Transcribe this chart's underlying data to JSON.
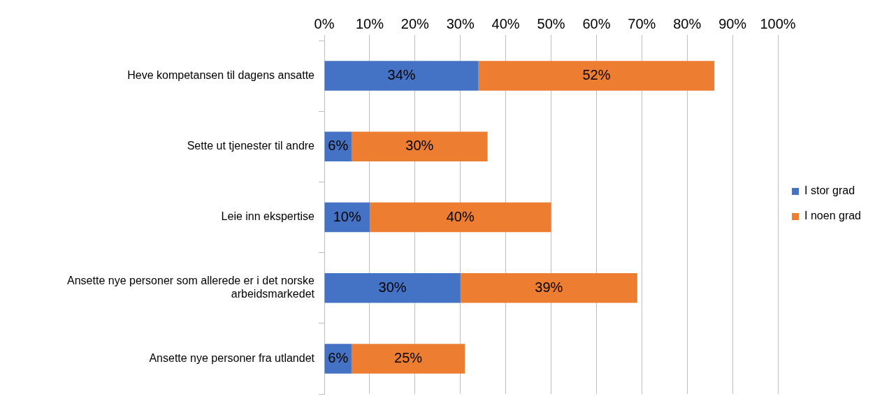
{
  "chart_data": {
    "type": "bar",
    "orientation": "horizontal",
    "stacked": true,
    "categories": [
      "Heve kompetansen til dagens ansatte",
      "Sette ut tjenester til andre",
      "Leie inn ekspertise",
      "Ansette nye personer som allerede er i det norske arbeidsmarkedet",
      "Ansette nye personer fra utlandet"
    ],
    "series": [
      {
        "name": "I stor grad",
        "color": "#4472c4",
        "values": [
          34,
          6,
          10,
          30,
          6
        ],
        "value_labels": [
          "34%",
          "6%",
          "10%",
          "30%",
          "6%"
        ]
      },
      {
        "name": "I noen grad",
        "color": "#ed7d31",
        "values": [
          52,
          30,
          40,
          39,
          25
        ],
        "value_labels": [
          "52%",
          "30%",
          "40%",
          "39%",
          "25%"
        ]
      }
    ],
    "xlim": [
      0,
      100
    ],
    "xticks": [
      {
        "value": 0,
        "label": "0%"
      },
      {
        "value": 10,
        "label": "10%"
      },
      {
        "value": 20,
        "label": "20%"
      },
      {
        "value": 30,
        "label": "30%"
      },
      {
        "value": 40,
        "label": "40%"
      },
      {
        "value": 50,
        "label": "50%"
      },
      {
        "value": 60,
        "label": "60%"
      },
      {
        "value": 70,
        "label": "70%"
      },
      {
        "value": 80,
        "label": "80%"
      },
      {
        "value": 90,
        "label": "90%"
      },
      {
        "value": 100,
        "label": "100%"
      }
    ],
    "grid": "x",
    "legend": "right"
  }
}
